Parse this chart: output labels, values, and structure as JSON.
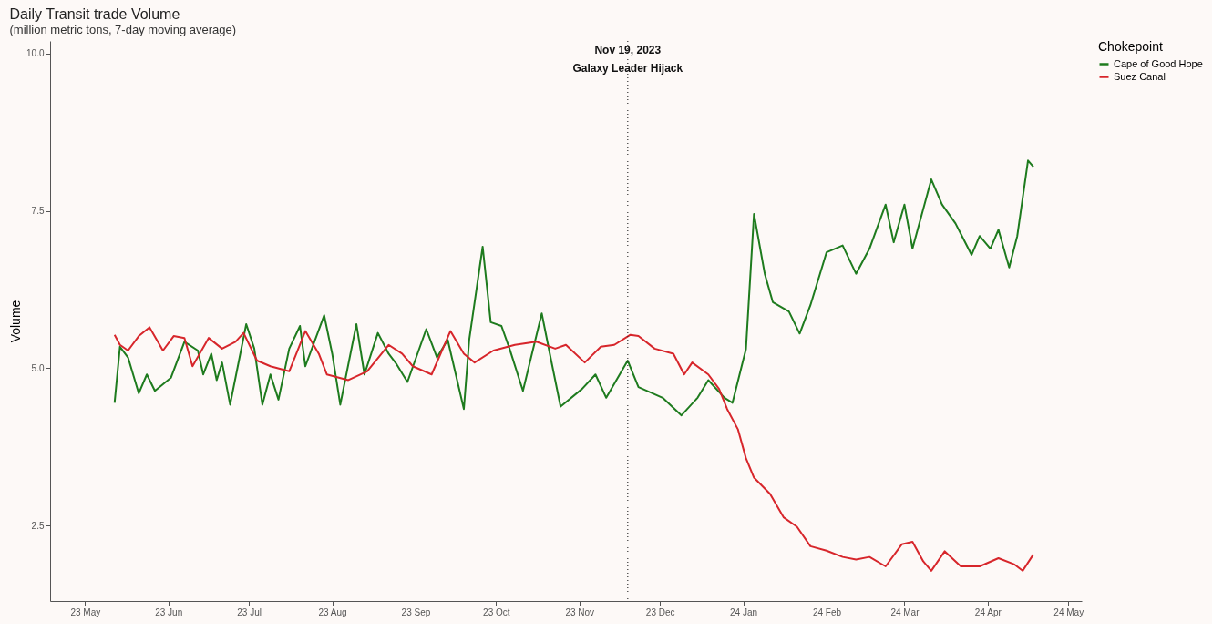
{
  "chart_data": {
    "type": "line",
    "title": "Daily Transit trade Volume",
    "subtitle": "(million metric tons, 7-day moving average)",
    "ylabel": "Volume",
    "legend_title": "Chokepoint",
    "legend": "right",
    "grid": false,
    "line_style": "solid",
    "marker": "none",
    "xlim": [
      "2023-04-18",
      "2024-05-06"
    ],
    "xticks": [
      {
        "value": "2023-05-01",
        "label": "23 May"
      },
      {
        "value": "2023-06-01",
        "label": "23 Jun"
      },
      {
        "value": "2023-07-01",
        "label": "23 Jul"
      },
      {
        "value": "2023-08-01",
        "label": "23 Aug"
      },
      {
        "value": "2023-09-01",
        "label": "23 Sep"
      },
      {
        "value": "2023-10-01",
        "label": "23 Oct"
      },
      {
        "value": "2023-11-01",
        "label": "23 Nov"
      },
      {
        "value": "2023-12-01",
        "label": "23 Dec"
      },
      {
        "value": "2024-01-01",
        "label": "24 Jan"
      },
      {
        "value": "2024-02-01",
        "label": "24 Feb"
      },
      {
        "value": "2024-03-01",
        "label": "24 Mar"
      },
      {
        "value": "2024-04-01",
        "label": "24 Apr"
      },
      {
        "value": "2024-05-01",
        "label": "24 May"
      }
    ],
    "ylim": [
      1.3,
      10.2
    ],
    "yticks": [
      {
        "value": 2.5,
        "label": "2.5"
      },
      {
        "value": 5,
        "label": "5.0"
      },
      {
        "value": 7.5,
        "label": "7.5"
      },
      {
        "value": 10,
        "label": "10.0"
      }
    ],
    "ref_lines": [
      {
        "axis": "x",
        "value": "2023-11-19",
        "label": "Nov 19, 2023\nGalaxy Leader Hijack",
        "line_style": "dotted",
        "color": "#333333"
      }
    ],
    "series": [
      {
        "name": "Cape of Good Hope",
        "color": "#1e7b1e",
        "x": [
          "2023-05-12",
          "2023-05-14",
          "2023-05-17",
          "2023-05-21",
          "2023-05-24",
          "2023-05-27",
          "2023-06-02",
          "2023-06-07",
          "2023-06-12",
          "2023-06-14",
          "2023-06-17",
          "2023-06-19",
          "2023-06-21",
          "2023-06-24",
          "2023-06-30",
          "2023-07-03",
          "2023-07-06",
          "2023-07-09",
          "2023-07-12",
          "2023-07-16",
          "2023-07-20",
          "2023-07-22",
          "2023-07-29",
          "2023-08-01",
          "2023-08-04",
          "2023-08-10",
          "2023-08-13",
          "2023-08-18",
          "2023-08-22",
          "2023-08-25",
          "2023-08-29",
          "2023-09-05",
          "2023-09-09",
          "2023-09-13",
          "2023-09-19",
          "2023-09-21",
          "2023-09-26",
          "2023-09-29",
          "2023-10-03",
          "2023-10-06",
          "2023-10-11",
          "2023-10-18",
          "2023-10-21",
          "2023-10-25",
          "2023-11-02",
          "2023-11-07",
          "2023-11-11",
          "2023-11-19",
          "2023-11-23",
          "2023-12-02",
          "2023-12-09",
          "2023-12-15",
          "2023-12-19",
          "2023-12-25",
          "2023-12-28",
          "2024-01-02",
          "2024-01-05",
          "2024-01-09",
          "2024-01-12",
          "2024-01-18",
          "2024-01-22",
          "2024-01-26",
          "2024-02-01",
          "2024-02-07",
          "2024-02-12",
          "2024-02-17",
          "2024-02-23",
          "2024-02-26",
          "2024-03-01",
          "2024-03-04",
          "2024-03-11",
          "2024-03-15",
          "2024-03-20",
          "2024-03-26",
          "2024-03-29",
          "2024-04-02",
          "2024-04-05",
          "2024-04-09",
          "2024-04-12",
          "2024-04-16",
          "2024-04-18"
        ],
        "values": [
          4.45,
          5.34,
          5.17,
          4.6,
          4.9,
          4.64,
          4.85,
          5.42,
          5.28,
          4.9,
          5.23,
          4.81,
          5.09,
          4.42,
          5.7,
          5.31,
          4.42,
          4.9,
          4.5,
          5.31,
          5.67,
          5.03,
          5.84,
          5.23,
          4.42,
          5.7,
          4.9,
          5.56,
          5.23,
          5.06,
          4.78,
          5.62,
          5.17,
          5.45,
          4.35,
          5.45,
          6.93,
          5.73,
          5.67,
          5.31,
          4.64,
          5.87,
          5.23,
          4.39,
          4.67,
          4.9,
          4.53,
          5.12,
          4.7,
          4.53,
          4.25,
          4.53,
          4.81,
          4.53,
          4.45,
          5.3,
          7.45,
          6.5,
          6.05,
          5.9,
          5.55,
          6.0,
          6.84,
          6.95,
          6.5,
          6.9,
          7.6,
          7.0,
          7.6,
          6.9,
          8.0,
          7.6,
          7.3,
          6.8,
          7.1,
          6.9,
          7.2,
          6.6,
          7.1,
          8.3,
          8.2
        ]
      },
      {
        "name": "Suez Canal",
        "color": "#d7262b",
        "x": [
          "2023-05-12",
          "2023-05-14",
          "2023-05-17",
          "2023-05-21",
          "2023-05-25",
          "2023-05-30",
          "2023-06-03",
          "2023-06-07",
          "2023-06-10",
          "2023-06-16",
          "2023-06-21",
          "2023-06-26",
          "2023-06-29",
          "2023-07-04",
          "2023-07-09",
          "2023-07-16",
          "2023-07-22",
          "2023-07-27",
          "2023-07-30",
          "2023-08-07",
          "2023-08-14",
          "2023-08-22",
          "2023-08-27",
          "2023-08-31",
          "2023-09-07",
          "2023-09-14",
          "2023-09-19",
          "2023-09-23",
          "2023-09-30",
          "2023-10-08",
          "2023-10-16",
          "2023-10-23",
          "2023-10-27",
          "2023-11-03",
          "2023-11-09",
          "2023-11-14",
          "2023-11-20",
          "2023-11-23",
          "2023-11-29",
          "2023-12-06",
          "2023-12-10",
          "2023-12-13",
          "2023-12-19",
          "2023-12-23",
          "2023-12-26",
          "2023-12-30",
          "2024-01-02",
          "2024-01-05",
          "2024-01-11",
          "2024-01-16",
          "2024-01-21",
          "2024-01-26",
          "2024-02-01",
          "2024-02-07",
          "2024-02-12",
          "2024-02-17",
          "2024-02-23",
          "2024-02-29",
          "2024-03-04",
          "2024-03-08",
          "2024-03-11",
          "2024-03-16",
          "2024-03-22",
          "2024-03-29",
          "2024-04-05",
          "2024-04-11",
          "2024-04-14",
          "2024-04-18"
        ],
        "values": [
          5.53,
          5.37,
          5.28,
          5.51,
          5.65,
          5.28,
          5.51,
          5.48,
          5.03,
          5.48,
          5.31,
          5.42,
          5.56,
          5.12,
          5.03,
          4.95,
          5.59,
          5.23,
          4.9,
          4.81,
          4.95,
          5.37,
          5.23,
          5.03,
          4.9,
          5.59,
          5.23,
          5.09,
          5.28,
          5.37,
          5.42,
          5.31,
          5.37,
          5.09,
          5.34,
          5.37,
          5.53,
          5.51,
          5.31,
          5.23,
          4.9,
          5.09,
          4.9,
          4.67,
          4.35,
          4.03,
          3.57,
          3.26,
          3.0,
          2.63,
          2.48,
          2.17,
          2.1,
          2.0,
          1.96,
          2.0,
          1.85,
          2.2,
          2.24,
          1.93,
          1.78,
          2.09,
          1.85,
          1.85,
          1.98,
          1.88,
          1.78,
          2.04
        ]
      }
    ]
  }
}
